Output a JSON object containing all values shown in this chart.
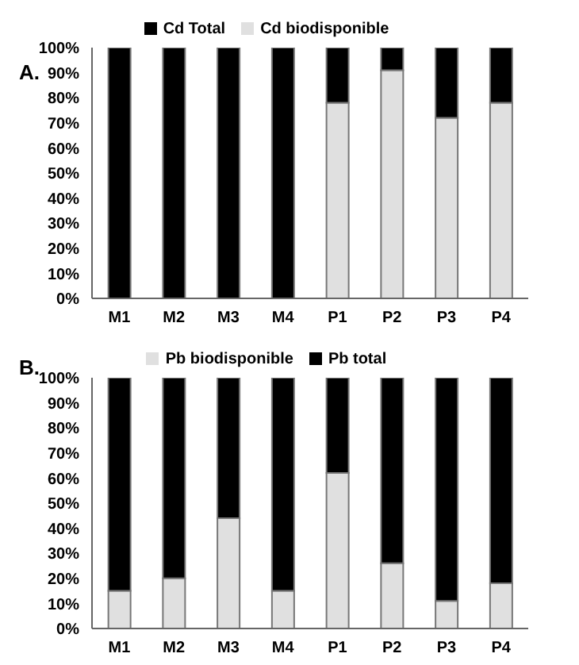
{
  "chart_data": [
    {
      "type": "bar",
      "stacked": true,
      "annotations": [
        "A."
      ],
      "categories": [
        "M1",
        "M2",
        "M3",
        "M4",
        "P1",
        "P2",
        "P3",
        "P4"
      ],
      "series": [
        {
          "name": "Cd biodisponible",
          "color": "#e0e0e0",
          "values": [
            0,
            0,
            0,
            0,
            78,
            91,
            72,
            78
          ]
        },
        {
          "name": "Cd Total",
          "color": "#000000",
          "values": [
            100,
            100,
            100,
            100,
            22,
            9,
            28,
            22
          ]
        }
      ],
      "ylim": [
        0,
        100
      ],
      "yticks": [
        {
          "value": 0,
          "label": "0%"
        },
        {
          "value": 10,
          "label": "10%"
        },
        {
          "value": 20,
          "label": "20%"
        },
        {
          "value": 30,
          "label": "30%"
        },
        {
          "value": 40,
          "label": "40%"
        },
        {
          "value": 50,
          "label": "50%"
        },
        {
          "value": 60,
          "label": "60%"
        },
        {
          "value": 70,
          "label": "70%"
        },
        {
          "value": 80,
          "label": "80%"
        },
        {
          "value": 90,
          "label": "90%"
        },
        {
          "value": 100,
          "label": "100%"
        }
      ],
      "grid": false,
      "legend": "top"
    },
    {
      "type": "bar",
      "stacked": true,
      "annotations": [
        "B."
      ],
      "categories": [
        "M1",
        "M2",
        "M3",
        "M4",
        "P1",
        "P2",
        "P3",
        "P4"
      ],
      "series": [
        {
          "name": "Pb biodisponible",
          "color": "#e0e0e0",
          "values": [
            15,
            20,
            44,
            15,
            62,
            26,
            11,
            18
          ]
        },
        {
          "name": "Pb total",
          "color": "#000000",
          "values": [
            85,
            80,
            56,
            85,
            38,
            74,
            89,
            82
          ]
        }
      ],
      "ylim": [
        0,
        100
      ],
      "yticks": [
        {
          "value": 0,
          "label": "0%"
        },
        {
          "value": 10,
          "label": "10%"
        },
        {
          "value": 20,
          "label": "20%"
        },
        {
          "value": 30,
          "label": "30%"
        },
        {
          "value": 40,
          "label": "40%"
        },
        {
          "value": 50,
          "label": "50%"
        },
        {
          "value": 60,
          "label": "60%"
        },
        {
          "value": 70,
          "label": "70%"
        },
        {
          "value": 80,
          "label": "80%"
        },
        {
          "value": 90,
          "label": "90%"
        },
        {
          "value": 100,
          "label": "100%"
        }
      ],
      "grid": false,
      "legend": "top"
    }
  ]
}
